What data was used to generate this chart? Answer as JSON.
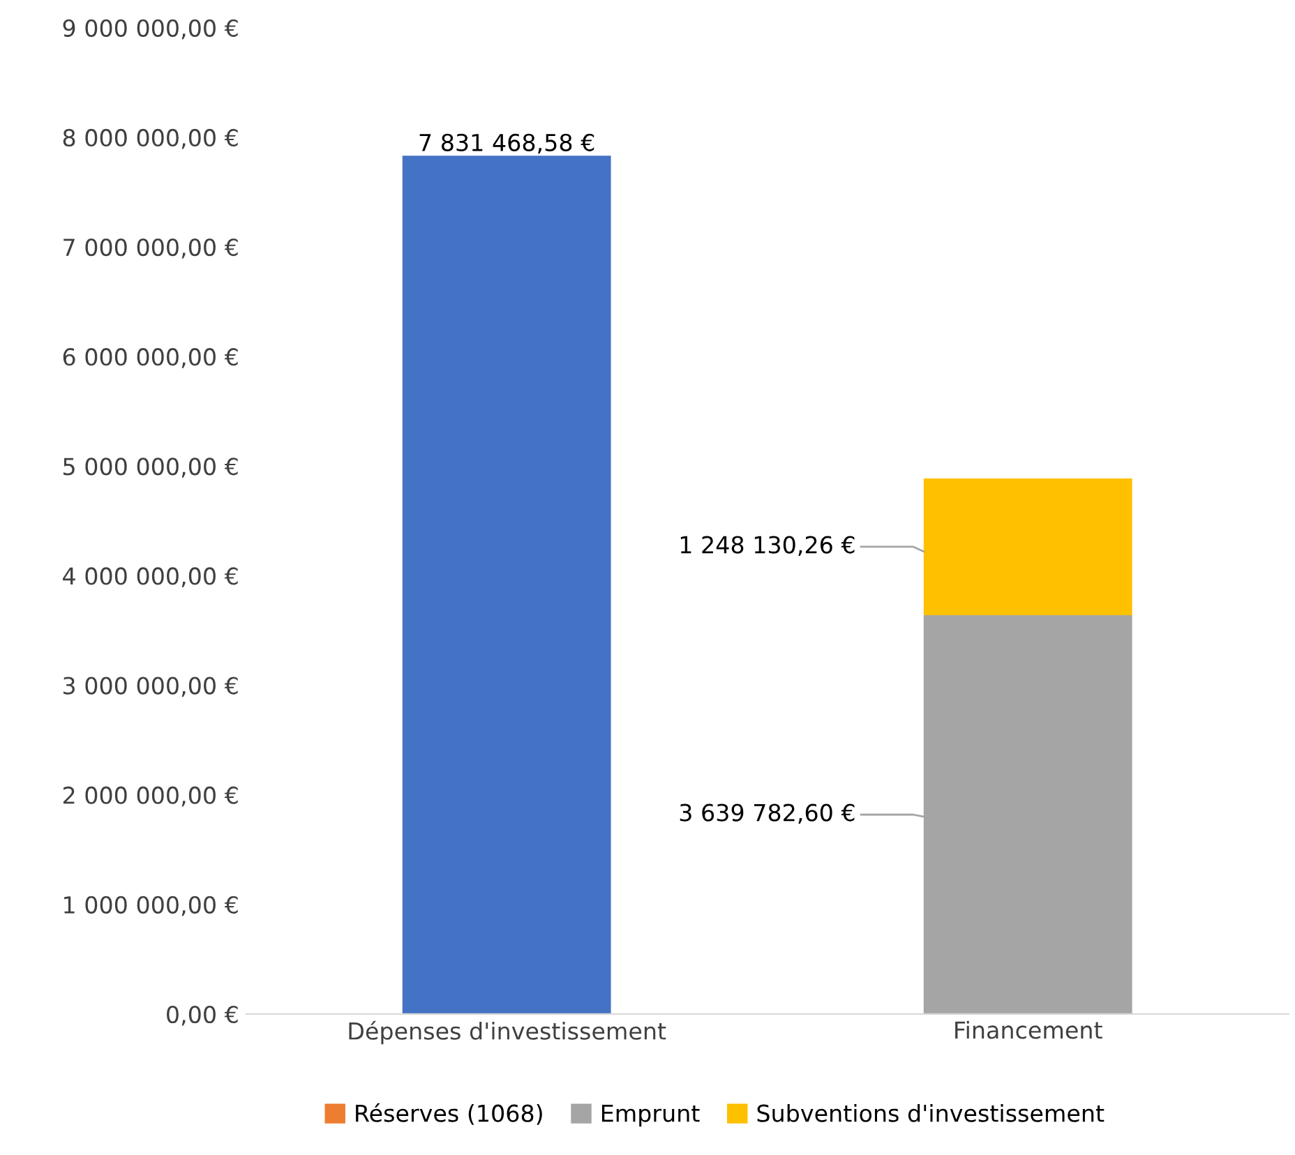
{
  "chart_data": {
    "type": "bar",
    "stacked": true,
    "categories": [
      "Dépenses d'investissement",
      "Financement"
    ],
    "series": [
      {
        "color": "#4472c4",
        "values": [
          7831468.58,
          null
        ],
        "value_labels": [
          "7 831 468,58 €",
          null
        ]
      },
      {
        "name": "Réserves (1068)",
        "color": "#ed7d31",
        "values": [
          null,
          0
        ],
        "value_labels": [
          null,
          null
        ]
      },
      {
        "name": "Emprunt",
        "color": "#a5a5a5",
        "values": [
          null,
          3639782.6
        ],
        "value_labels": [
          null,
          "3 639 782,60 €"
        ]
      },
      {
        "name": "Subventions d'investissement",
        "color": "#ffc000",
        "values": [
          null,
          1248130.26
        ],
        "value_labels": [
          null,
          "1 248 130,26 €"
        ]
      }
    ],
    "ylim": [
      0,
      9000000
    ],
    "yticks": [
      {
        "value": 0,
        "label": "0,00 €"
      },
      {
        "value": 1000000,
        "label": "1 000 000,00 €"
      },
      {
        "value": 2000000,
        "label": "2 000 000,00 €"
      },
      {
        "value": 3000000,
        "label": "3 000 000,00 €"
      },
      {
        "value": 4000000,
        "label": "4 000 000,00 €"
      },
      {
        "value": 5000000,
        "label": "5 000 000,00 €"
      },
      {
        "value": 6000000,
        "label": "6 000 000,00 €"
      },
      {
        "value": 7000000,
        "label": "7 000 000,00 €"
      },
      {
        "value": 8000000,
        "label": "8 000 000,00 €"
      },
      {
        "value": 9000000,
        "label": "9 000 000,00 €"
      }
    ],
    "grid": false,
    "legend": "bottom"
  }
}
